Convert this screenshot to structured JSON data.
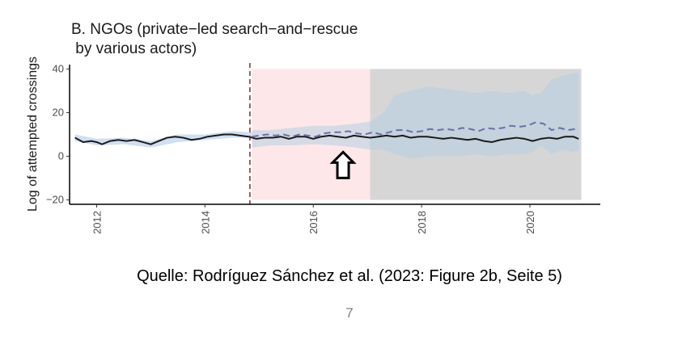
{
  "chart_data": {
    "type": "line",
    "title_line1": "B. NGOs (private−led search−and−rescue",
    "title_line2": " by various actors)",
    "ylabel": "Log of attempted crossings",
    "xlabel": "",
    "xlim": [
      2011.5,
      2021.3
    ],
    "ylim": [
      -22,
      42
    ],
    "xticks": [
      2012,
      2014,
      2016,
      2018,
      2020
    ],
    "xtick_labels": [
      "2012",
      "2014",
      "2016",
      "2018",
      "2020"
    ],
    "yticks": [
      -20,
      0,
      20,
      40
    ],
    "ytick_labels": [
      "−20",
      "0",
      "20",
      "40"
    ],
    "grid": false,
    "event_line_x": 2014.83,
    "shaded_regions": [
      {
        "label": "pink",
        "x0": 2014.87,
        "x1": 2017.05,
        "y0": -20,
        "y1": 40,
        "color": "#fde7e9"
      },
      {
        "label": "grey",
        "x0": 2017.05,
        "x1": 2020.95,
        "y0": -20,
        "y1": 40,
        "color": "#d6d6d6"
      }
    ],
    "series": [
      {
        "style": "solid",
        "color": "#1a1a1a",
        "x": [
          2011.6,
          2011.75,
          2011.9,
          2012.0,
          2012.1,
          2012.25,
          2012.4,
          2012.55,
          2012.7,
          2012.85,
          2013.0,
          2013.15,
          2013.3,
          2013.45,
          2013.6,
          2013.75,
          2013.9,
          2014.05,
          2014.2,
          2014.35,
          2014.5,
          2014.65,
          2014.8,
          2014.95,
          2015.1,
          2015.25,
          2015.4,
          2015.55,
          2015.7,
          2015.85,
          2016.0,
          2016.15,
          2016.3,
          2016.45,
          2016.6,
          2016.75,
          2016.9,
          2017.05,
          2017.2,
          2017.35,
          2017.5,
          2017.65,
          2017.8,
          2017.95,
          2018.1,
          2018.25,
          2018.4,
          2018.55,
          2018.7,
          2018.85,
          2019.0,
          2019.15,
          2019.3,
          2019.45,
          2019.6,
          2019.75,
          2019.9,
          2020.05,
          2020.2,
          2020.35,
          2020.5,
          2020.65,
          2020.8,
          2020.9
        ],
        "values": [
          8.5,
          6.5,
          7,
          6.5,
          5.5,
          7,
          7.5,
          7,
          7.5,
          6.5,
          5.5,
          7,
          8.5,
          9,
          8.5,
          7.5,
          8,
          9,
          9.5,
          10,
          10,
          9.5,
          9,
          8,
          8.5,
          8.5,
          9,
          8,
          9,
          9,
          8,
          9,
          9.5,
          9,
          8.5,
          9.5,
          9,
          8.5,
          9,
          9.5,
          9,
          9.5,
          8.5,
          9,
          9,
          8.5,
          8,
          8.5,
          8,
          7.5,
          8,
          7,
          6.5,
          7.5,
          8,
          8.5,
          8,
          7,
          8,
          8.5,
          8,
          9,
          9,
          8
        ]
      },
      {
        "style": "dashed",
        "color": "#6a6fa8",
        "x": [
          2014.87,
          2015.0,
          2015.15,
          2015.3,
          2015.45,
          2015.6,
          2015.75,
          2015.9,
          2016.05,
          2016.2,
          2016.35,
          2016.5,
          2016.65,
          2016.8,
          2016.95,
          2017.1,
          2017.25,
          2017.4,
          2017.55,
          2017.7,
          2017.85,
          2018.0,
          2018.15,
          2018.3,
          2018.45,
          2018.6,
          2018.75,
          2018.9,
          2019.05,
          2019.2,
          2019.35,
          2019.5,
          2019.65,
          2019.8,
          2019.95,
          2020.1,
          2020.25,
          2020.4,
          2020.55,
          2020.7,
          2020.85,
          2020.9
        ],
        "values": [
          9,
          9.5,
          10,
          9.5,
          10,
          9,
          10,
          9.5,
          9,
          10.5,
          11,
          11,
          11.5,
          10.5,
          10,
          11,
          10,
          11,
          12,
          12,
          11,
          11.5,
          12.5,
          12,
          12.5,
          12,
          13,
          12.5,
          11.5,
          13,
          12.5,
          13,
          14,
          13.5,
          14,
          15.5,
          15,
          12,
          13,
          12,
          12.5,
          12
        ]
      }
    ],
    "ribbons": [
      {
        "label": "observed-band",
        "color": "#a9c5e6",
        "x": [
          2011.6,
          2012.0,
          2012.5,
          2013.0,
          2013.5,
          2014.0,
          2014.5,
          2014.87
        ],
        "lower": [
          7,
          5,
          5.5,
          4,
          6.5,
          7.5,
          8.5,
          8.5
        ],
        "upper": [
          10,
          8,
          8.5,
          7,
          10,
          10,
          11.5,
          11
        ]
      },
      {
        "label": "counterfactual-band",
        "color": "#b4cfe2",
        "x": [
          2014.87,
          2015.2,
          2015.6,
          2016.0,
          2016.4,
          2016.8,
          2017.05,
          2017.3,
          2017.5,
          2017.8,
          2018.1,
          2018.4,
          2018.7,
          2019.0,
          2019.3,
          2019.6,
          2019.9,
          2020.05,
          2020.2,
          2020.4,
          2020.6,
          2020.8,
          2020.9
        ],
        "lower": [
          4,
          5,
          5,
          5.5,
          5,
          4,
          3,
          3,
          1,
          -1,
          0,
          0,
          0,
          1,
          0,
          1,
          1,
          2,
          5,
          1,
          3,
          2,
          3
        ],
        "upper": [
          12,
          12,
          13,
          14,
          14,
          15,
          16,
          20,
          28,
          30,
          32,
          31,
          30,
          29,
          30,
          29,
          30,
          28,
          29,
          35,
          37,
          38,
          38
        ]
      }
    ],
    "annotation": {
      "type": "arrow-up",
      "x": 2016.55,
      "y": -4
    }
  },
  "source_text": "Quelle: Rodríguez Sánchez et al. (2023: Figure 2b, Seite 5)",
  "page_number": "7"
}
